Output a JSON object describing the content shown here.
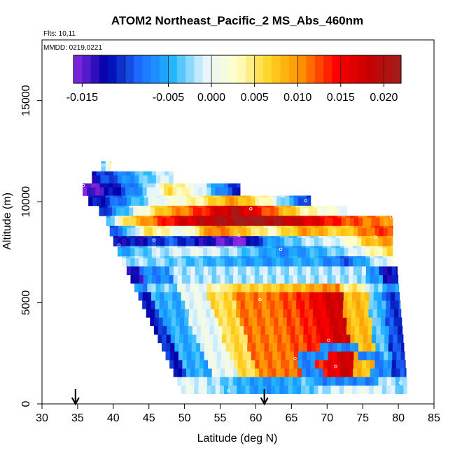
{
  "chart_data": {
    "type": "heatmap",
    "title": "ATOM2 Northeast_Pacific_2 MS_Abs_460nm",
    "flights_note": "Flts: 10,11",
    "dates_note": "MMDD: 0219,0221",
    "xlabel": "Latitude (deg N)",
    "ylabel": "Altitude (m)",
    "xlim": [
      30,
      85
    ],
    "ylim": [
      0,
      18000
    ],
    "x_ticks": [
      30,
      35,
      40,
      45,
      50,
      55,
      60,
      65,
      70,
      75,
      80,
      85
    ],
    "y_ticks": [
      0,
      5000,
      10000,
      15000
    ],
    "colorbar": {
      "min": -0.016,
      "max": 0.022,
      "ticks": [
        -0.015,
        -0.005,
        0.0,
        0.005,
        0.01,
        0.015,
        0.02
      ],
      "tick_labels": [
        "-0.015",
        "-0.005",
        "0.000",
        "0.005",
        "0.010",
        "0.015",
        "0.020"
      ],
      "colors": [
        "#8a2be2",
        "#0000a8",
        "#1c6cff",
        "#1eb4ff",
        "#e6f5ff",
        "#ffffc8",
        "#ffd21e",
        "#ff8c00",
        "#ff0000",
        "#c80000",
        "#a01e1e"
      ]
    },
    "grid": false,
    "cell_width_deg": 0.6,
    "cell_height_m": 420,
    "bands": [
      {
        "lat_start": 38.3,
        "lat_end": 39.7,
        "alt_low": 11500,
        "alt_high": 12000,
        "profile": [
          [
            38.3,
            -0.005
          ],
          [
            39.0,
            0.0
          ],
          [
            39.7,
            0.004
          ]
        ]
      },
      {
        "lat_start": 37.0,
        "lat_end": 48.5,
        "alt_low": 10900,
        "alt_high": 11500,
        "profile": [
          [
            37.0,
            -0.012
          ],
          [
            40.0,
            -0.009
          ],
          [
            44.0,
            -0.004
          ],
          [
            48.5,
            0.0
          ]
        ]
      },
      {
        "lat_start": 35.7,
        "lat_end": 57.8,
        "alt_low": 10300,
        "alt_high": 10900,
        "profile": [
          [
            35.7,
            -0.016
          ],
          [
            40.0,
            -0.012
          ],
          [
            44.0,
            -0.005
          ],
          [
            48.0,
            0.006
          ],
          [
            52.0,
            0.0
          ],
          [
            56.0,
            -0.009
          ],
          [
            57.8,
            -0.011
          ]
        ]
      },
      {
        "lat_start": 36.5,
        "lat_end": 67.7,
        "alt_low": 9800,
        "alt_high": 10300,
        "profile": [
          [
            36.5,
            -0.013
          ],
          [
            41.0,
            -0.008
          ],
          [
            46.0,
            0.0
          ],
          [
            52.0,
            0.004
          ],
          [
            57.0,
            0.01
          ],
          [
            62.0,
            0.002
          ],
          [
            67.7,
            -0.012
          ]
        ]
      },
      {
        "lat_start": 38.0,
        "lat_end": 72.8,
        "alt_low": 9300,
        "alt_high": 9800,
        "profile": [
          [
            38.0,
            -0.012
          ],
          [
            42.0,
            -0.003
          ],
          [
            47.0,
            0.008
          ],
          [
            52.0,
            0.013
          ],
          [
            57.0,
            0.02
          ],
          [
            62.0,
            0.012
          ],
          [
            67.0,
            0.004
          ],
          [
            72.8,
            0.0
          ]
        ]
      },
      {
        "lat_start": 39.0,
        "lat_end": 79.2,
        "alt_low": 8800,
        "alt_high": 9300,
        "profile": [
          [
            39.0,
            -0.005
          ],
          [
            42.0,
            0.006
          ],
          [
            46.0,
            0.012
          ],
          [
            50.0,
            0.017
          ],
          [
            55.0,
            0.02
          ],
          [
            60.0,
            0.022
          ],
          [
            66.0,
            0.018
          ],
          [
            72.0,
            0.013
          ],
          [
            79.2,
            0.01
          ]
        ]
      },
      {
        "lat_start": 39.5,
        "lat_end": 79.2,
        "alt_low": 8300,
        "alt_high": 8800,
        "profile": [
          [
            39.5,
            -0.01
          ],
          [
            42.0,
            -0.005
          ],
          [
            45.0,
            0.006
          ],
          [
            50.0,
            0.0
          ],
          [
            54.0,
            0.012
          ],
          [
            58.0,
            0.008
          ],
          [
            62.0,
            0.003
          ],
          [
            67.0,
            0.01
          ],
          [
            72.0,
            0.006
          ],
          [
            76.0,
            0.012
          ],
          [
            79.2,
            0.013
          ]
        ]
      },
      {
        "lat_start": 40.0,
        "lat_end": 79.2,
        "alt_low": 7800,
        "alt_high": 8300,
        "profile": [
          [
            40.0,
            -0.012
          ],
          [
            44.0,
            -0.012
          ],
          [
            48.0,
            -0.009
          ],
          [
            53.0,
            -0.013
          ],
          [
            58.0,
            -0.016
          ],
          [
            62.0,
            -0.006
          ],
          [
            67.0,
            -0.002
          ],
          [
            72.0,
            0.0
          ],
          [
            76.0,
            0.008
          ],
          [
            79.2,
            0.01
          ]
        ]
      },
      {
        "lat_start": 40.6,
        "lat_end": 79.2,
        "alt_low": 7300,
        "alt_high": 7800,
        "profile": [
          [
            40.6,
            -0.006
          ],
          [
            46.0,
            -0.002
          ],
          [
            52.0,
            0.0
          ],
          [
            58.0,
            -0.003
          ],
          [
            64.0,
            -0.007
          ],
          [
            70.0,
            -0.004
          ],
          [
            74.0,
            -0.001
          ],
          [
            77.0,
            0.004
          ],
          [
            79.2,
            0.006
          ]
        ]
      },
      {
        "lat_start": 41.2,
        "lat_end": 79.2,
        "alt_low": 6800,
        "alt_high": 7300,
        "profile": [
          [
            41.2,
            -0.002
          ],
          [
            48.0,
            -0.003
          ],
          [
            55.0,
            -0.005
          ],
          [
            62.0,
            -0.006
          ],
          [
            68.0,
            -0.005
          ],
          [
            73.0,
            -0.009
          ],
          [
            76.0,
            -0.003
          ],
          [
            79.2,
            0.001
          ]
        ]
      }
    ],
    "lower_region": {
      "vertices_lat_alt": [
        [
          41.6,
          6800
        ],
        [
          79.8,
          6800
        ],
        [
          81.2,
          1100
        ],
        [
          49.8,
          500
        ]
      ],
      "profile_notes": "wedge-shaped cross-section with blue edges, pale rings and a warm core near 60-72 N, 2000-6000 m"
    },
    "data_markers": [
      {
        "lat": 38.6,
        "alt": 11800
      },
      {
        "lat": 35.8,
        "alt": 10800
      },
      {
        "lat": 67.0,
        "alt": 10050
      },
      {
        "lat": 59.3,
        "alt": 9650
      },
      {
        "lat": 79.0,
        "alt": 9250
      },
      {
        "lat": 57.6,
        "alt": 8350
      },
      {
        "lat": 76.8,
        "alt": 8250
      },
      {
        "lat": 45.7,
        "alt": 8100
      },
      {
        "lat": 40.8,
        "alt": 7850
      },
      {
        "lat": 63.5,
        "alt": 7650
      },
      {
        "lat": 73.1,
        "alt": 7400
      },
      {
        "lat": 60.6,
        "alt": 5150
      },
      {
        "lat": 70.2,
        "alt": 3150
      },
      {
        "lat": 65.5,
        "alt": 2250
      },
      {
        "lat": 71.2,
        "alt": 1850
      },
      {
        "lat": 80.3,
        "alt": 1050
      },
      {
        "lat": 56.2,
        "alt": 650
      }
    ],
    "arrows_lat": [
      34.7,
      61.2
    ]
  }
}
